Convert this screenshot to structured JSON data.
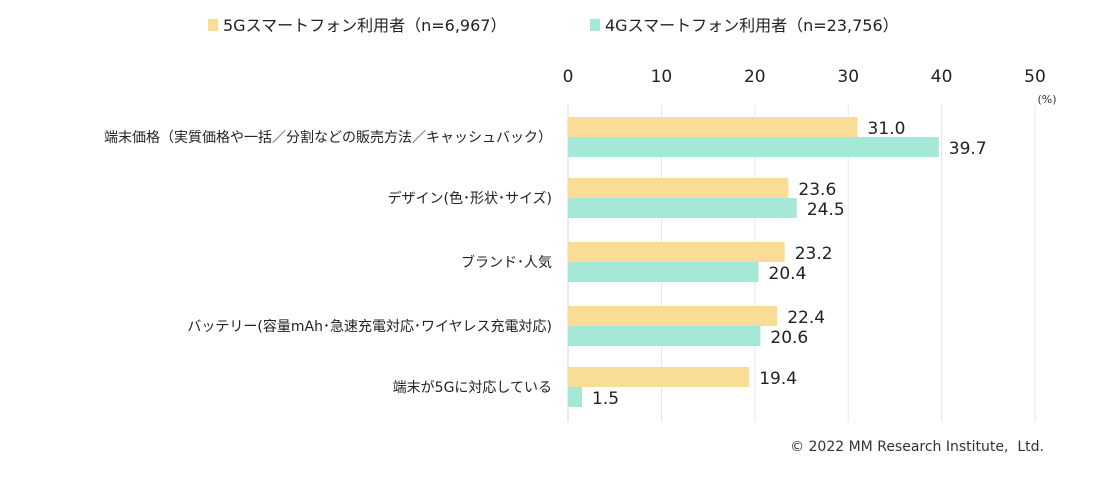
{
  "chart_data": {
    "type": "bar",
    "orientation": "horizontal",
    "categories": [
      "端末価格（実質価格や一括／分割などの販売方法／キャッシュバック）",
      "デザイン(色･形状･サイズ)",
      "ブランド･人気",
      "バッテリー(容量mAh･急速充電対応･ワイヤレス充電対応)",
      "端末が5Gに対応している"
    ],
    "series": [
      {
        "name": "5Gスマートフォン利用者（n=6,967）",
        "color": "#F9DC96",
        "values": [
          31.0,
          23.6,
          23.2,
          22.4,
          19.4
        ]
      },
      {
        "name": "4Gスマートフォン利用者（n=23,756）",
        "color": "#A6E8D8",
        "values": [
          39.7,
          24.5,
          20.4,
          20.6,
          1.5
        ]
      }
    ],
    "xlim": [
      0,
      50
    ],
    "xticks": [
      "0",
      "10",
      "20",
      "30",
      "40",
      "50"
    ],
    "xunit": "(%)",
    "grid": true,
    "legend_position": "top"
  },
  "footer": {
    "copyright": "© 2022 MM Research Institute,  Ltd."
  }
}
